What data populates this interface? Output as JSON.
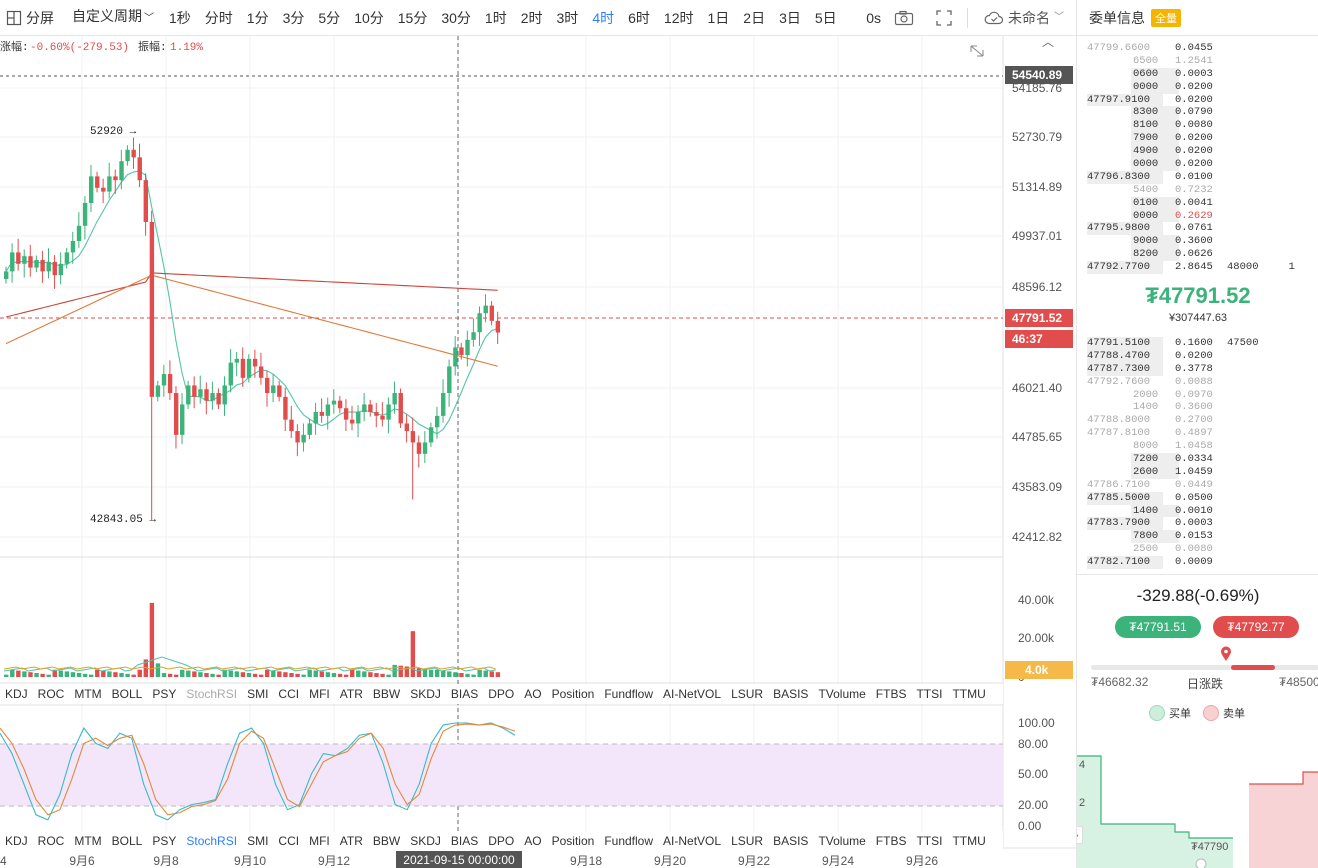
{
  "toolbar": {
    "split_label": "分屏",
    "period_label": "自定义周期",
    "intervals": [
      "1秒",
      "分时",
      "1分",
      "3分",
      "5分",
      "10分",
      "15分",
      "30分",
      "1时",
      "2时",
      "3时",
      "4时",
      "6时",
      "12时",
      "1日",
      "2日",
      "3日",
      "5日"
    ],
    "active_interval": "4时",
    "countdown": "0s",
    "layout_name": "未命名"
  },
  "chart": {
    "header_change_label": "涨幅:",
    "header_change_value": "-0.60%(-279.53)",
    "header_amp_label": "振幅:",
    "header_amp_value": "1.19%",
    "high_label": "52920",
    "low_label": "42843.05",
    "price_ticks": [
      "54185.76",
      "52730.79",
      "51314.89",
      "49937.01",
      "48596.12",
      "46021.40",
      "44785.65",
      "43583.09",
      "42412.82"
    ],
    "tag_top": "54540.89",
    "tag_current": "47791.52",
    "tag_countdown": "46:37",
    "volume_ticks": [
      "40.00k",
      "20.00k",
      "0"
    ],
    "volume_tag": "4.0k",
    "osc_ticks": [
      "100.00",
      "80.00",
      "50.00",
      "20.00",
      "0.00"
    ],
    "date_ticks": [
      "9月6",
      "9月8",
      "9月10",
      "9月12",
      "9月18",
      "9月20",
      "9月22",
      "9月24",
      "9月26"
    ],
    "date_highlight": "2021-09-15 00:00:00",
    "date_left_fragment": "4"
  },
  "indicators": {
    "items": [
      "KDJ",
      "ROC",
      "MTM",
      "BOLL",
      "PSY",
      "StochRSI",
      "SMI",
      "CCI",
      "MFI",
      "ATR",
      "BBW",
      "SKDJ",
      "BIAS",
      "DPO",
      "AO",
      "Position",
      "Fundflow",
      "AI-NetVOL",
      "LSUR",
      "BASIS",
      "TVolume",
      "FTBS",
      "TTSI",
      "TTMU"
    ],
    "muted_top": "StochRSI",
    "selected_bottom": "StochRSI"
  },
  "panel": {
    "title": "委单信息",
    "badge": "全量",
    "asks": [
      {
        "p": "47799.6600",
        "q": "0.0455",
        "pd": true
      },
      {
        "p": "6500",
        "q": "1.2541",
        "pd": true,
        "qd": true
      },
      {
        "p": "0600",
        "q": "0.0003"
      },
      {
        "p": "0000",
        "q": "0.0200"
      },
      {
        "p": "47797.9100",
        "q": "0.0200"
      },
      {
        "p": "8300",
        "q": "0.0790"
      },
      {
        "p": "8100",
        "q": "0.0080"
      },
      {
        "p": "7900",
        "q": "0.0200"
      },
      {
        "p": "4900",
        "q": "0.0200"
      },
      {
        "p": "0000",
        "q": "0.0200"
      },
      {
        "p": "47796.8300",
        "q": "0.0100"
      },
      {
        "p": "5400",
        "q": "0.7232",
        "pd": true,
        "qd": true
      },
      {
        "p": "0100",
        "q": "0.0041"
      },
      {
        "p": "0000",
        "q": "0.2629",
        "qr": true
      },
      {
        "p": "47795.9800",
        "q": "0.0761"
      },
      {
        "p": "9000",
        "q": "0.3600"
      },
      {
        "p": "8200",
        "q": "0.0626"
      },
      {
        "p": "47792.7700",
        "q": "2.8645",
        "x": "48000",
        "x2": "1"
      }
    ],
    "last_price": "₮47791.52",
    "last_price_sub": "¥307447.63",
    "bids": [
      {
        "p": "47791.5100",
        "q": "0.1600",
        "x": "47500"
      },
      {
        "p": "47788.4700",
        "q": "0.0200"
      },
      {
        "p": "47787.7300",
        "q": "0.3778"
      },
      {
        "p": "47792.7600",
        "q": "0.0088",
        "pd": true,
        "qd": true
      },
      {
        "p": "2000",
        "q": "0.0970",
        "pd": true,
        "qd": true
      },
      {
        "p": "1400",
        "q": "0.3600",
        "pd": true,
        "qd": true
      },
      {
        "p": "47788.8000",
        "q": "0.2700",
        "pd": true,
        "qd": true
      },
      {
        "p": "47787.8100",
        "q": "0.4897",
        "pd": true,
        "qd": true
      },
      {
        "p": "8000",
        "q": "1.0458",
        "pd": true,
        "qd": true
      },
      {
        "p": "7200",
        "q": "0.0334"
      },
      {
        "p": "2600",
        "q": "1.0459"
      },
      {
        "p": "47786.7100",
        "q": "0.0449",
        "pd": true,
        "qd": true
      },
      {
        "p": "47785.5000",
        "q": "0.0500"
      },
      {
        "p": "1400",
        "q": "0.0010"
      },
      {
        "p": "47783.7900",
        "q": "0.0003"
      },
      {
        "p": "7800",
        "q": "0.0153"
      },
      {
        "p": "2500",
        "q": "0.0080",
        "pd": true,
        "qd": true
      },
      {
        "p": "47782.7100",
        "q": "0.0009"
      }
    ],
    "change_text": "-329.88(-0.69%)",
    "bid_button": "₮47791.51",
    "ask_button": "₮47792.77",
    "range_low": "₮46682.32",
    "range_label": "日涨跌",
    "range_high": "₮48500",
    "legend_buy": "买单",
    "legend_sell": "卖单",
    "depth_y1": "4",
    "depth_y2": "2",
    "depth_price": "₮47790"
  },
  "colors": {
    "up": "#3bb37a",
    "down": "#e14d4d",
    "accent": "#2d7ff9",
    "ma_fast": "#52c5a6",
    "ma_mid": "#e07b3c",
    "ma_slow": "#c8463a"
  }
}
